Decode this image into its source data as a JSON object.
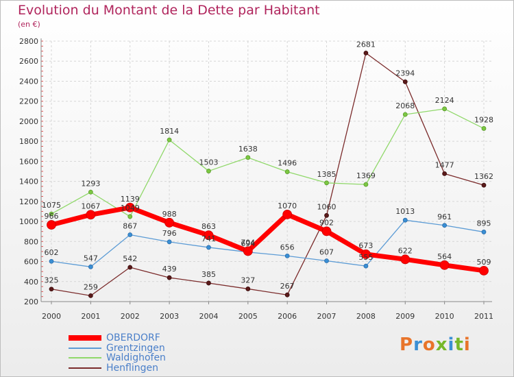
{
  "header": {
    "title": "Evolution du Montant de la Dette par Habitant",
    "subtitle": "(en €)"
  },
  "logo": {
    "text": "Proxiti",
    "colors": [
      "#e8742a",
      "#3a8fd4",
      "#e8742a",
      "#76b82a",
      "#3a8fd4",
      "#76b82a",
      "#e8742a"
    ]
  },
  "chart_data": {
    "type": "line",
    "x": [
      "2000",
      "2001",
      "2002",
      "2003",
      "2004",
      "2005",
      "2006",
      "2007",
      "2008",
      "2009",
      "2010",
      "2011"
    ],
    "ylim": [
      200,
      2800
    ],
    "yticks": [
      200,
      400,
      600,
      800,
      1000,
      1200,
      1400,
      1600,
      1800,
      2000,
      2200,
      2400,
      2600,
      2800
    ],
    "grid": true,
    "legend_position": "bottom-left",
    "series": [
      {
        "name": "OBERDORF",
        "color": "#ff0000",
        "values": [
          966,
          1067,
          1139,
          988,
          863,
          704,
          1070,
          902,
          673,
          622,
          564,
          509
        ]
      },
      {
        "name": "Grentzingen",
        "color": "#5b9bd5",
        "values": [
          602,
          547,
          867,
          796,
          741,
          694,
          656,
          607,
          555,
          1013,
          961,
          895
        ]
      },
      {
        "name": "Waldighofen",
        "color": "#90d86a",
        "values": [
          1075,
          1293,
          1049,
          1814,
          1503,
          1638,
          1496,
          1385,
          1369,
          2068,
          2124,
          1928
        ]
      },
      {
        "name": "Henflingen",
        "color": "#7a2a2a",
        "values": [
          325,
          259,
          542,
          439,
          385,
          327,
          267,
          1060,
          2681,
          2394,
          1477,
          1362
        ]
      }
    ]
  }
}
